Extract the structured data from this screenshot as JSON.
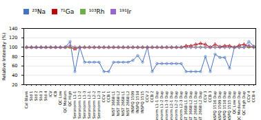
{
  "chart_data": {
    "type": "line",
    "y_label": "Relative Intensity (%)",
    "categories": [
      "Cal Blank",
      "Std 1",
      "Std 2",
      "Std 3",
      "Std 4",
      "ICV",
      "ICB",
      "QC Low",
      "QC Medium",
      "QC High",
      "Seronorm L1-1",
      "Seronorm L1-2",
      "Seronorm L1-3",
      "Seronorm L2-1",
      "Seronorm L2-2",
      "Seronorm L2-3",
      "CCV 1",
      "CCB 1",
      "NIST 3668 L1",
      "NIST 3668 L2",
      "NIST 2668 L1",
      "NIST 2668 L2",
      "INSPQ 1509",
      "INSPQ 1510",
      "INSPQ 1515",
      "CCV 2",
      "CCB 2",
      "Seronorm L1-1 Dup",
      "Seronorm L1-2 Dup",
      "Seronorm L1-3 Dup",
      "Seronorm L2-1 Dup",
      "Seronorm L2-2 Dup",
      "Seronorm L2-3 Dup",
      "NIST 3668 L1 Dup",
      "NIST 3668 L2 Dup",
      "NIST 2668 L1 Dup",
      "NIST 2668 L2 Dup",
      "CCV 3",
      "CCB 3",
      "INSPQ 1516 Dup",
      "INSPQ 1509 Dup",
      "INSPQ 1510 Dup",
      "INSPQ 1515 Dup",
      "QC Low Dup",
      "QC Medium Dup",
      "QC High Dup",
      "CCV 4",
      "CCB 4"
    ],
    "series": [
      {
        "name": "²³Na",
        "color": "#4472c4",
        "marker": "circle",
        "values": [
          100,
          100,
          100,
          100,
          100,
          100,
          100,
          100,
          100,
          112,
          48,
          100,
          68,
          68,
          68,
          68,
          48,
          48,
          68,
          68,
          68,
          68,
          72,
          82,
          68,
          100,
          48,
          65,
          65,
          65,
          65,
          65,
          65,
          48,
          48,
          48,
          48,
          80,
          48,
          85,
          78,
          78,
          55,
          100,
          100,
          100,
          112,
          102
        ]
      },
      {
        "name": "⁷¹Ga",
        "color": "#c00000",
        "marker": "triangle",
        "values": [
          100,
          100,
          100,
          100,
          100,
          100,
          100,
          100,
          100,
          100,
          96,
          100,
          100,
          100,
          100,
          100,
          100,
          100,
          100,
          100,
          100,
          100,
          100,
          100,
          100,
          100,
          100,
          100,
          100,
          100,
          100,
          100,
          100,
          103,
          103,
          106,
          108,
          106,
          100,
          106,
          101,
          103,
          103,
          100,
          104,
          106,
          101,
          101
        ]
      },
      {
        "name": "¹⁰³Rh",
        "color": "#70ad47",
        "marker": "circle",
        "values": [
          100,
          100,
          100,
          100,
          100,
          100,
          100,
          100,
          100,
          100,
          99,
          100,
          100,
          100,
          100,
          100,
          100,
          100,
          100,
          100,
          100,
          100,
          100,
          100,
          100,
          100,
          100,
          100,
          100,
          100,
          100,
          100,
          100,
          100,
          100,
          100,
          100,
          100,
          100,
          100,
          100,
          100,
          100,
          100,
          100,
          100,
          100,
          100
        ]
      },
      {
        "name": "¹⁹¹Ir",
        "color": "#9966cc",
        "marker": "diamond",
        "values": [
          100,
          100,
          100,
          100,
          100,
          100,
          100,
          100,
          100,
          104,
          100,
          100,
          100,
          100,
          100,
          100,
          100,
          100,
          100,
          100,
          100,
          100,
          100,
          100,
          100,
          100,
          100,
          100,
          100,
          100,
          100,
          100,
          100,
          100,
          100,
          100,
          100,
          100,
          100,
          100,
          100,
          100,
          100,
          100,
          100,
          100,
          104,
          100
        ]
      }
    ],
    "ylim": [
      20,
      140
    ],
    "yticks": [
      20,
      40,
      60,
      80,
      100,
      120,
      140
    ],
    "grid": true,
    "legend": "top"
  }
}
